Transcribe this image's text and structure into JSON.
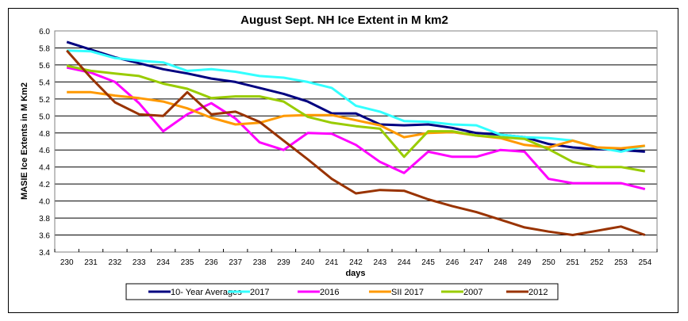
{
  "chart_data": {
    "type": "line",
    "title": "August Sept. NH Ice Extent in M km2",
    "xlabel": "days",
    "ylabel": "MASIE Ice Extents in M Km2",
    "ylim": [
      3.4,
      6.0
    ],
    "yticks": [
      "3.4",
      "3.6",
      "3.8",
      "4.0",
      "4.2",
      "4.4",
      "4.6",
      "4.8",
      "5.0",
      "5.2",
      "5.4",
      "5.6",
      "5.8",
      "6.0"
    ],
    "grid": true,
    "legend_position": "bottom",
    "x": [
      "230",
      "231",
      "232",
      "233",
      "234",
      "235",
      "236",
      "237",
      "238",
      "239",
      "240",
      "241",
      "242",
      "243",
      "244",
      "245",
      "246",
      "247",
      "248",
      "249",
      "250",
      "251",
      "252",
      "253",
      "254"
    ],
    "series": [
      {
        "name": "10- Year Averages",
        "color": "#000080",
        "values": [
          5.87,
          5.78,
          5.69,
          5.62,
          5.55,
          5.5,
          5.44,
          5.4,
          5.33,
          5.26,
          5.17,
          5.03,
          5.03,
          4.9,
          4.89,
          4.9,
          4.86,
          4.8,
          4.78,
          4.75,
          4.67,
          4.63,
          4.61,
          4.6,
          4.58
        ]
      },
      {
        "name": "2017",
        "color": "#33FFFF",
        "values": [
          5.77,
          5.76,
          5.68,
          5.65,
          5.63,
          5.53,
          5.55,
          5.52,
          5.47,
          5.45,
          5.4,
          5.33,
          5.12,
          5.05,
          4.94,
          4.93,
          4.9,
          4.89,
          4.78,
          4.75,
          4.74,
          4.71,
          4.63,
          4.58,
          4.65
        ]
      },
      {
        "name": "2016",
        "color": "#FF00FF",
        "values": [
          5.57,
          5.51,
          5.4,
          5.15,
          4.82,
          5.02,
          5.15,
          4.97,
          4.69,
          4.6,
          4.8,
          4.79,
          4.66,
          4.46,
          4.33,
          4.58,
          4.52,
          4.52,
          4.6,
          4.58,
          4.26,
          4.21,
          4.21,
          4.21,
          4.14
        ]
      },
      {
        "name": "SII 2017",
        "color": "#FF9900",
        "values": [
          5.28,
          5.28,
          5.24,
          5.21,
          5.17,
          5.09,
          4.98,
          4.9,
          4.92,
          5.0,
          5.01,
          5.01,
          4.95,
          4.89,
          4.75,
          4.8,
          4.81,
          4.77,
          4.74,
          4.66,
          4.63,
          4.71,
          4.63,
          4.62,
          4.65
        ]
      },
      {
        "name": "2007",
        "color": "#99CC00",
        "values": [
          5.59,
          5.53,
          5.5,
          5.47,
          5.38,
          5.32,
          5.21,
          5.23,
          5.23,
          5.17,
          4.99,
          4.92,
          4.88,
          4.85,
          4.52,
          4.82,
          4.82,
          4.77,
          4.75,
          4.73,
          4.61,
          4.46,
          4.4,
          4.4,
          4.35
        ]
      },
      {
        "name": "2012",
        "color": "#993300",
        "values": [
          5.77,
          5.45,
          5.16,
          5.02,
          5.0,
          5.28,
          5.02,
          5.05,
          4.93,
          4.71,
          4.49,
          4.26,
          4.09,
          4.13,
          4.12,
          4.02,
          3.94,
          3.87,
          3.78,
          3.69,
          3.64,
          3.6,
          3.65,
          3.7,
          3.6
        ]
      }
    ]
  }
}
